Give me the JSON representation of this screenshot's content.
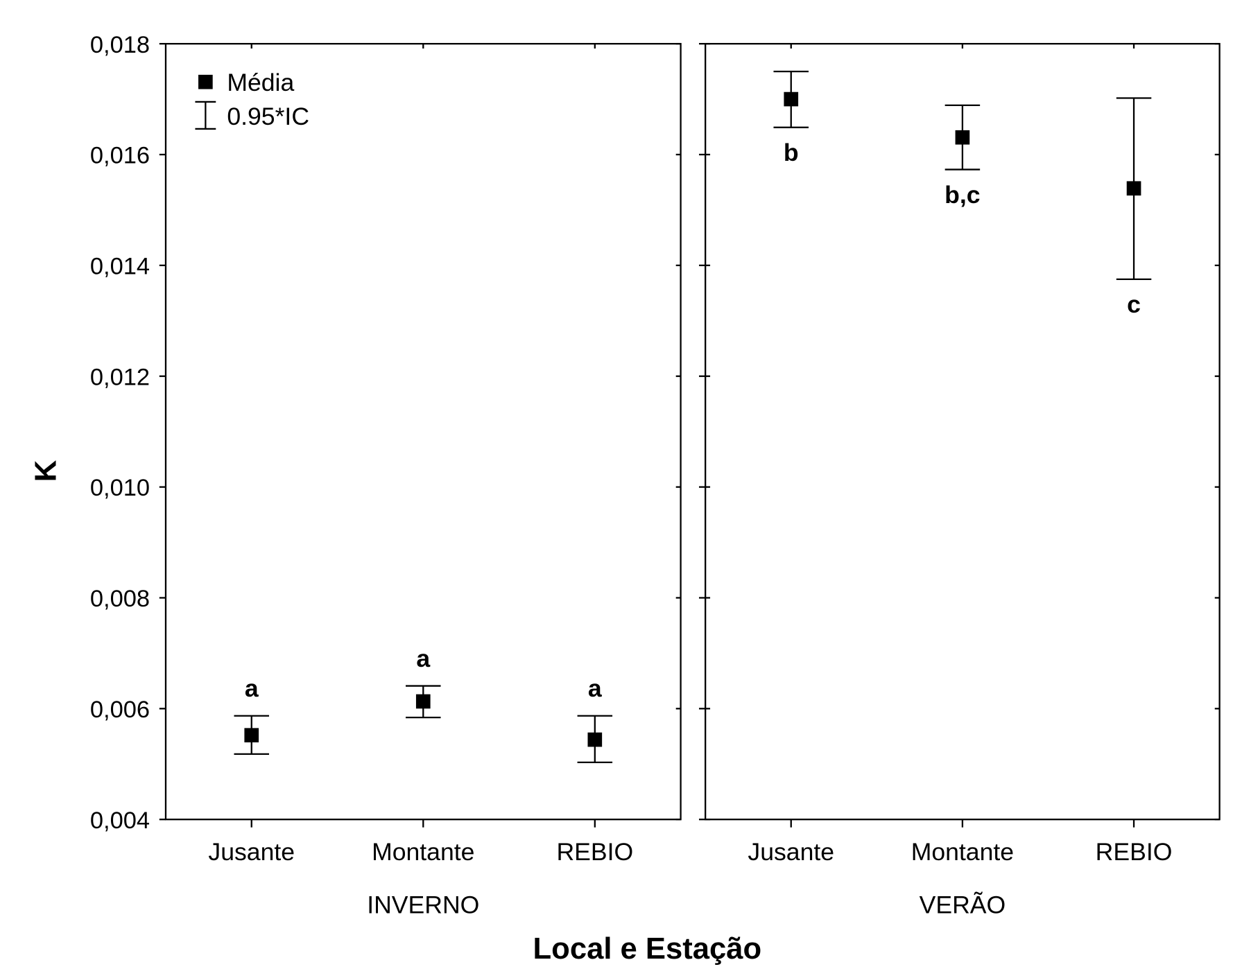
{
  "chart_data": {
    "type": "scatter",
    "subtype": "means-with-error-bars",
    "xlabel": "Local e Estação",
    "ylabel": "K",
    "ylim": [
      0.004,
      0.018
    ],
    "yticks": [
      "0,004",
      "0,006",
      "0,008",
      "0,010",
      "0,012",
      "0,014",
      "0,016",
      "0,018"
    ],
    "ytick_values": [
      0.004,
      0.006,
      0.008,
      0.01,
      0.012,
      0.014,
      0.016,
      0.018
    ],
    "legend": {
      "position": "top-left",
      "entries": [
        "Média",
        "0.95*IC"
      ]
    },
    "panels": [
      {
        "group": "INVERNO",
        "categories": [
          "Jusante",
          "Montante",
          "REBIO"
        ],
        "mean": [
          0.00552,
          0.00613,
          0.00544
        ],
        "ci_low": [
          0.00518,
          0.00584,
          0.00503
        ],
        "ci_high": [
          0.00587,
          0.00641,
          0.00587
        ],
        "letters": [
          "a",
          "a",
          "a"
        ],
        "letter_position": "above"
      },
      {
        "group": "VERÃO",
        "categories": [
          "Jusante",
          "Montante",
          "REBIO"
        ],
        "mean": [
          0.017,
          0.01631,
          0.01539
        ],
        "ci_low": [
          0.01649,
          0.01573,
          0.01375
        ],
        "ci_high": [
          0.0175,
          0.01689,
          0.01702
        ],
        "letters": [
          "b",
          "b,c",
          "c"
        ],
        "letter_position": "below"
      }
    ]
  }
}
